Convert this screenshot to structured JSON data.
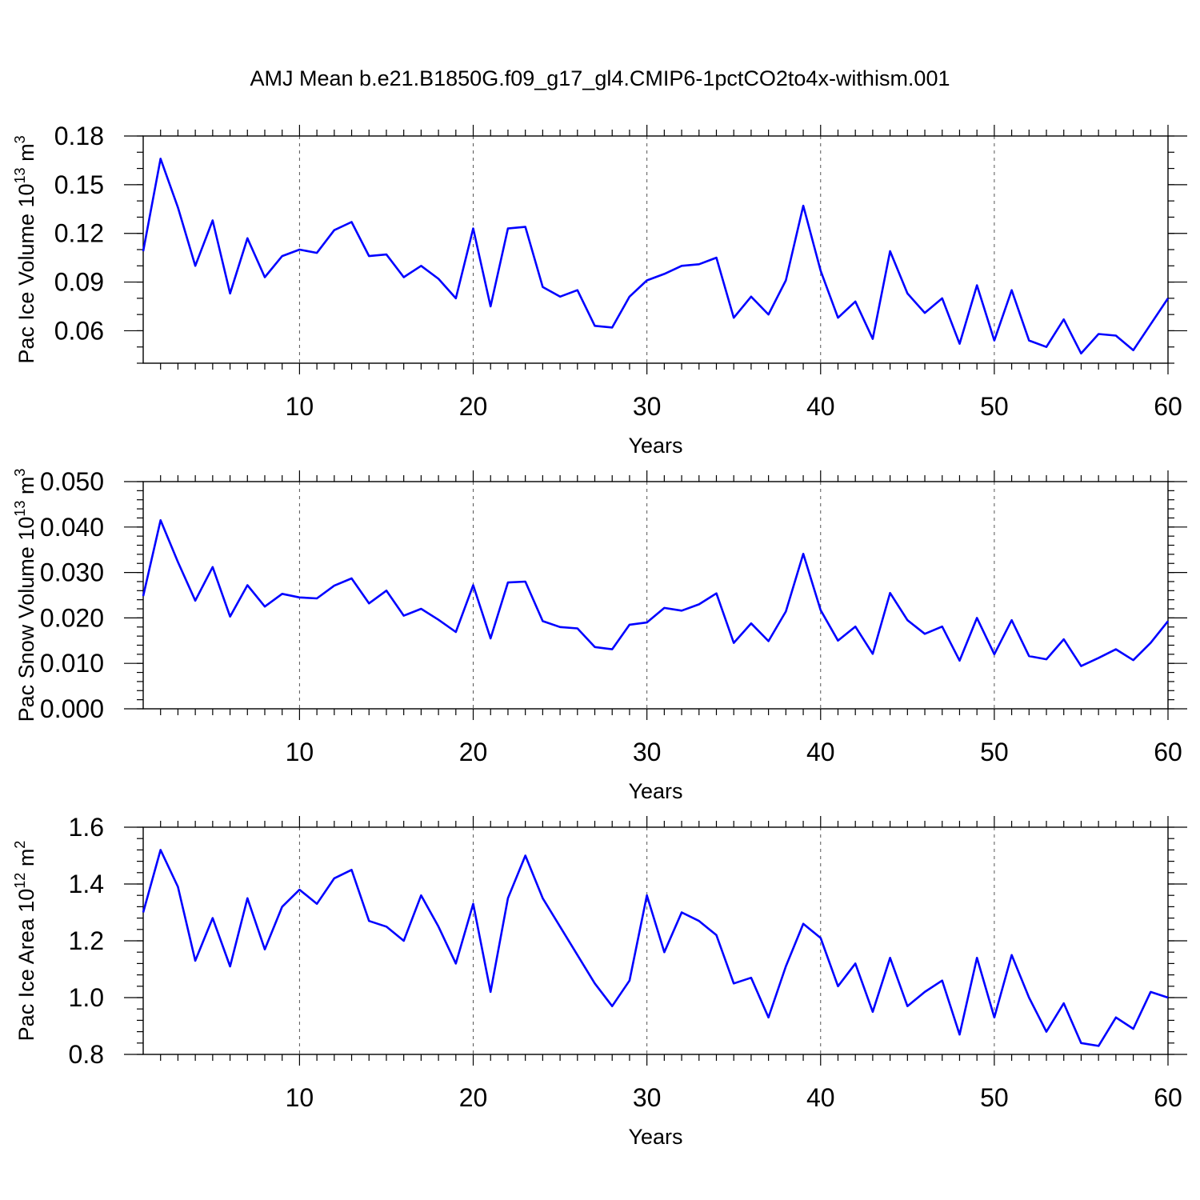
{
  "title": "AMJ Mean b.e21.B1850G.f09_g17_gl4.CMIP6-1pctCO2to4x-withism.001",
  "chart_data": [
    {
      "type": "line",
      "ylabel_main": "Pac Ice Volume 10",
      "ylabel_exp": "13",
      "ylabel_unit": " m",
      "ylabel_unit_exp": "3",
      "xlabel": "Years",
      "xlim": [
        1,
        60
      ],
      "ylim": [
        0.04,
        0.18
      ],
      "x_ticks": [
        10,
        20,
        30,
        40,
        50,
        60
      ],
      "x_tick_labels": [
        "10",
        "20",
        "30",
        "40",
        "50",
        "60"
      ],
      "y_ticks": [
        0.06,
        0.09,
        0.12,
        0.15,
        0.18
      ],
      "y_tick_labels": [
        "0.06",
        "0.09",
        "0.12",
        "0.15",
        "0.18"
      ],
      "y_minor_step": 0.01,
      "color": "#0000ff",
      "x": [
        1,
        2,
        3,
        4,
        5,
        6,
        7,
        8,
        9,
        10,
        11,
        12,
        13,
        14,
        15,
        16,
        17,
        18,
        19,
        20,
        21,
        22,
        23,
        24,
        25,
        26,
        27,
        28,
        29,
        30,
        31,
        32,
        33,
        34,
        35,
        36,
        37,
        38,
        39,
        40,
        41,
        42,
        43,
        44,
        45,
        46,
        47,
        48,
        49,
        50,
        51,
        52,
        53,
        54,
        55,
        56,
        57,
        58,
        59,
        60
      ],
      "values": [
        0.109,
        0.166,
        0.136,
        0.1,
        0.128,
        0.083,
        0.117,
        0.093,
        0.106,
        0.11,
        0.108,
        0.122,
        0.127,
        0.106,
        0.107,
        0.093,
        0.1,
        0.092,
        0.08,
        0.123,
        0.075,
        0.123,
        0.124,
        0.087,
        0.081,
        0.085,
        0.063,
        0.062,
        0.081,
        0.091,
        0.095,
        0.1,
        0.101,
        0.105,
        0.068,
        0.081,
        0.07,
        0.091,
        0.137,
        0.097,
        0.068,
        0.078,
        0.055,
        0.109,
        0.083,
        0.071,
        0.08,
        0.052,
        0.088,
        0.054,
        0.085,
        0.054,
        0.05,
        0.067,
        0.046,
        0.058,
        0.057,
        0.048,
        0.064,
        0.08
      ]
    },
    {
      "type": "line",
      "ylabel_main": "Pac Snow Volume 10",
      "ylabel_exp": "13",
      "ylabel_unit": " m",
      "ylabel_unit_exp": "3",
      "xlabel": "Years",
      "xlim": [
        1,
        60
      ],
      "ylim": [
        0.0,
        0.05
      ],
      "x_ticks": [
        10,
        20,
        30,
        40,
        50,
        60
      ],
      "x_tick_labels": [
        "10",
        "20",
        "30",
        "40",
        "50",
        "60"
      ],
      "y_ticks": [
        0.0,
        0.01,
        0.02,
        0.03,
        0.04,
        0.05
      ],
      "y_tick_labels": [
        "0.000",
        "0.010",
        "0.020",
        "0.030",
        "0.040",
        "0.050"
      ],
      "y_minor_step": 0.002,
      "color": "#0000ff",
      "x": [
        1,
        2,
        3,
        4,
        5,
        6,
        7,
        8,
        9,
        10,
        11,
        12,
        13,
        14,
        15,
        16,
        17,
        18,
        19,
        20,
        21,
        22,
        23,
        24,
        25,
        26,
        27,
        28,
        29,
        30,
        31,
        32,
        33,
        34,
        35,
        36,
        37,
        38,
        39,
        40,
        41,
        42,
        43,
        44,
        45,
        46,
        47,
        48,
        49,
        50,
        51,
        52,
        53,
        54,
        55,
        56,
        57,
        58,
        59,
        60
      ],
      "values": [
        0.0248,
        0.0415,
        0.0323,
        0.0238,
        0.0312,
        0.0203,
        0.0272,
        0.0225,
        0.0253,
        0.0245,
        0.0243,
        0.0271,
        0.0287,
        0.0232,
        0.026,
        0.0205,
        0.022,
        0.0196,
        0.0169,
        0.0272,
        0.0155,
        0.0278,
        0.028,
        0.0193,
        0.018,
        0.0177,
        0.0136,
        0.0131,
        0.0185,
        0.019,
        0.0222,
        0.0216,
        0.023,
        0.0254,
        0.0145,
        0.0188,
        0.0149,
        0.0214,
        0.0341,
        0.0217,
        0.015,
        0.0181,
        0.0121,
        0.0255,
        0.0195,
        0.0165,
        0.0181,
        0.0106,
        0.02,
        0.012,
        0.0195,
        0.0116,
        0.0109,
        0.0153,
        0.0094,
        0.0112,
        0.0131,
        0.0107,
        0.0145,
        0.0193
      ]
    },
    {
      "type": "line",
      "ylabel_main": "Pac Ice Area 10",
      "ylabel_exp": "12",
      "ylabel_unit": " m",
      "ylabel_unit_exp": "2",
      "xlabel": "Years",
      "xlim": [
        1,
        60
      ],
      "ylim": [
        0.8,
        1.6
      ],
      "x_ticks": [
        10,
        20,
        30,
        40,
        50,
        60
      ],
      "x_tick_labels": [
        "10",
        "20",
        "30",
        "40",
        "50",
        "60"
      ],
      "y_ticks": [
        0.8,
        1.0,
        1.2,
        1.4,
        1.6
      ],
      "y_tick_labels": [
        "0.8",
        "1.0",
        "1.2",
        "1.4",
        "1.6"
      ],
      "y_minor_step": 0.04,
      "color": "#0000ff",
      "x": [
        1,
        2,
        3,
        4,
        5,
        6,
        7,
        8,
        9,
        10,
        11,
        12,
        13,
        14,
        15,
        16,
        17,
        18,
        19,
        20,
        21,
        22,
        23,
        24,
        25,
        26,
        27,
        28,
        29,
        30,
        31,
        32,
        33,
        34,
        35,
        36,
        37,
        38,
        39,
        40,
        41,
        42,
        43,
        44,
        45,
        46,
        47,
        48,
        49,
        50,
        51,
        52,
        53,
        54,
        55,
        56,
        57,
        58,
        59,
        60
      ],
      "values": [
        1.3,
        1.52,
        1.39,
        1.13,
        1.28,
        1.11,
        1.35,
        1.17,
        1.32,
        1.38,
        1.33,
        1.42,
        1.45,
        1.27,
        1.25,
        1.2,
        1.36,
        1.25,
        1.12,
        1.33,
        1.02,
        1.35,
        1.5,
        1.35,
        1.25,
        1.15,
        1.05,
        0.97,
        1.06,
        1.36,
        1.16,
        1.3,
        1.27,
        1.22,
        1.05,
        1.07,
        0.93,
        1.11,
        1.26,
        1.21,
        1.04,
        1.12,
        0.95,
        1.14,
        0.97,
        1.02,
        1.06,
        0.87,
        1.14,
        0.93,
        1.15,
        1.0,
        0.88,
        0.98,
        0.84,
        0.83,
        0.93,
        0.89,
        1.02,
        1.0
      ]
    }
  ]
}
